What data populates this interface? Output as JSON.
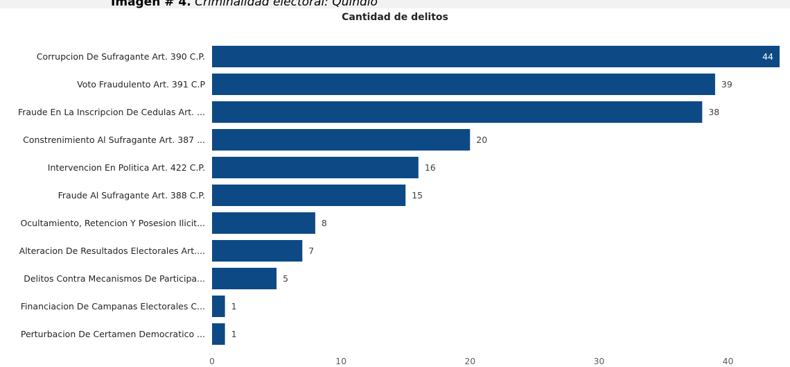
{
  "caption": {
    "lead": "Imagen # 4.",
    "rest": " Criminalidad electoral: Quindío"
  },
  "chart_data": {
    "type": "bar",
    "orientation": "horizontal",
    "title": "Cantidad de delitos",
    "xlabel": "",
    "ylabel": "",
    "xlim": [
      0,
      44
    ],
    "x_ticks": [
      0,
      10,
      20,
      30,
      40
    ],
    "grid": false,
    "bar_color": "#0d4a85",
    "categories": [
      "Corrupcion De Sufragante Art. 390 C.P.",
      "Voto Fraudulento Art. 391 C.P",
      "Fraude En La Inscripcion De Cedulas Art. ...",
      "Constrenimiento Al Sufragante Art. 387 ...",
      "Intervencion En Politica Art. 422 C.P.",
      "Fraude Al Sufragante Art. 388 C.P.",
      "Ocultamiento, Retencion Y Posesion Ilicit...",
      "Alteracion De Resultados Electorales Art....",
      "Delitos Contra Mecanismos De Participa...",
      "Financiacion De Campanas Electorales C...",
      "Perturbacion De Certamen Democratico ..."
    ],
    "values": [
      44,
      39,
      38,
      20,
      16,
      15,
      8,
      7,
      5,
      1,
      1
    ]
  }
}
